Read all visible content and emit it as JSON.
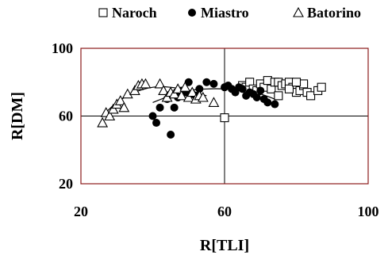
{
  "chart_data": {
    "type": "scatter",
    "xlabel": "R[TLI]",
    "ylabel": "R[DM]",
    "xlim": [
      20,
      100
    ],
    "ylim": [
      20,
      100
    ],
    "x_ticks": [
      20,
      60,
      100
    ],
    "y_ticks": [
      20,
      60,
      100
    ],
    "grid": "center-lines",
    "legend_position": "top",
    "colors": {
      "plot_border": "#8b1a1a",
      "marker": "#000000"
    },
    "series": [
      {
        "name": "Naroch",
        "marker": "open-square",
        "points": [
          [
            60,
            59
          ],
          [
            65,
            78
          ],
          [
            66,
            77
          ],
          [
            67,
            80
          ],
          [
            68,
            76
          ],
          [
            69,
            75
          ],
          [
            70,
            79
          ],
          [
            71,
            77
          ],
          [
            72,
            81
          ],
          [
            73,
            76
          ],
          [
            74,
            80
          ],
          [
            75,
            80
          ],
          [
            76,
            78
          ],
          [
            77,
            79
          ],
          [
            78,
            80
          ],
          [
            79,
            77
          ],
          [
            80,
            74
          ],
          [
            81,
            75
          ],
          [
            82,
            78
          ],
          [
            82,
            79
          ],
          [
            83,
            74
          ],
          [
            84,
            72
          ],
          [
            86,
            75
          ],
          [
            87,
            77
          ],
          [
            75,
            72
          ],
          [
            78,
            76
          ],
          [
            80,
            80
          ]
        ]
      },
      {
        "name": "Miastro",
        "marker": "filled-circle",
        "points": [
          [
            40,
            60
          ],
          [
            41,
            56
          ],
          [
            42,
            65
          ],
          [
            44,
            70
          ],
          [
            45,
            49
          ],
          [
            45,
            73
          ],
          [
            46,
            65
          ],
          [
            47,
            71
          ],
          [
            48,
            75
          ],
          [
            49,
            74
          ],
          [
            50,
            80
          ],
          [
            51,
            73
          ],
          [
            52,
            72
          ],
          [
            53,
            76
          ],
          [
            55,
            80
          ],
          [
            57,
            79
          ],
          [
            60,
            77
          ],
          [
            61,
            78
          ],
          [
            62,
            76
          ],
          [
            63,
            74
          ],
          [
            64,
            77
          ],
          [
            65,
            76
          ],
          [
            66,
            72
          ],
          [
            67,
            74
          ],
          [
            68,
            73
          ],
          [
            69,
            71
          ],
          [
            70,
            75
          ],
          [
            71,
            70
          ],
          [
            72,
            68
          ],
          [
            74,
            67
          ]
        ]
      },
      {
        "name": "Batorino",
        "marker": "open-triangle",
        "points": [
          [
            26,
            56
          ],
          [
            27,
            62
          ],
          [
            28,
            60
          ],
          [
            29,
            64
          ],
          [
            30,
            67
          ],
          [
            31,
            69
          ],
          [
            32,
            65
          ],
          [
            33,
            73
          ],
          [
            35,
            75
          ],
          [
            36,
            78
          ],
          [
            37,
            79
          ],
          [
            38,
            79
          ],
          [
            42,
            79
          ],
          [
            43,
            75
          ],
          [
            44,
            71
          ],
          [
            45,
            74
          ],
          [
            46,
            73
          ],
          [
            47,
            76
          ],
          [
            48,
            72
          ],
          [
            49,
            77
          ],
          [
            50,
            71
          ],
          [
            51,
            74
          ],
          [
            52,
            70
          ],
          [
            53,
            72
          ],
          [
            54,
            71
          ],
          [
            57,
            68
          ]
        ]
      }
    ],
    "trend_curves": [
      {
        "series": "Batorino",
        "x": [
          26,
          30,
          35,
          40,
          45,
          50,
          55
        ],
        "y": [
          60,
          68,
          74,
          77,
          77,
          75,
          72
        ]
      },
      {
        "series": "Miastro",
        "x": [
          40,
          45,
          50,
          55,
          60,
          65,
          70,
          74
        ],
        "y": [
          68,
          72,
          75,
          76,
          76,
          75,
          73,
          70
        ]
      }
    ]
  }
}
